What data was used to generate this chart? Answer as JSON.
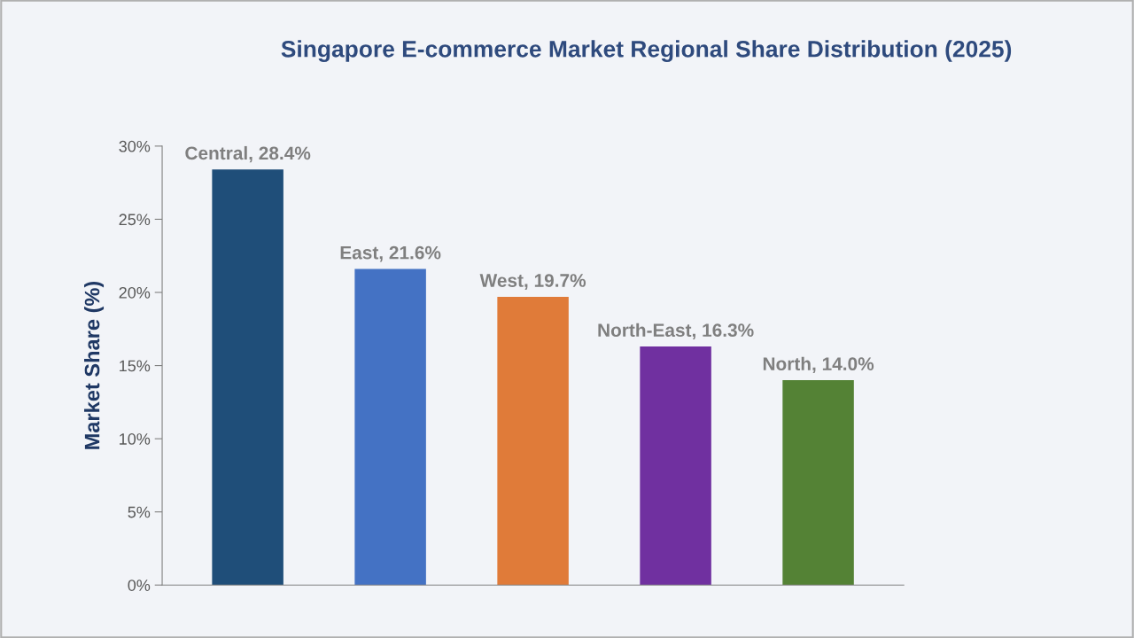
{
  "chart_data": {
    "type": "bar",
    "title": "Singapore E-commerce Market Regional Share Distribution (2025)",
    "ylabel": "Market Share (%)",
    "categories": [
      null,
      null,
      null,
      null,
      null
    ],
    "values": [
      28.4,
      21.6,
      19.7,
      16.3,
      14.0
    ],
    "colors": [
      "#1f4e79",
      "#4472c4",
      "#e07b39",
      "#7030a0",
      "#548235"
    ],
    "value_labels": [
      "Central, 28.4%",
      "East, 21.6%",
      "West, 19.7%",
      "North-East, 16.3%",
      "North, 14.0%"
    ],
    "ylim": [
      0,
      30
    ],
    "yticks": [
      {
        "value": 0,
        "label": "0%"
      },
      {
        "value": 5,
        "label": "5%"
      },
      {
        "value": 10,
        "label": "10%"
      },
      {
        "value": 15,
        "label": "15%"
      },
      {
        "value": 20,
        "label": "20%"
      },
      {
        "value": 25,
        "label": "25%"
      },
      {
        "value": 30,
        "label": "30%"
      }
    ],
    "tick_labels": "y",
    "grid": false,
    "legend": false
  }
}
